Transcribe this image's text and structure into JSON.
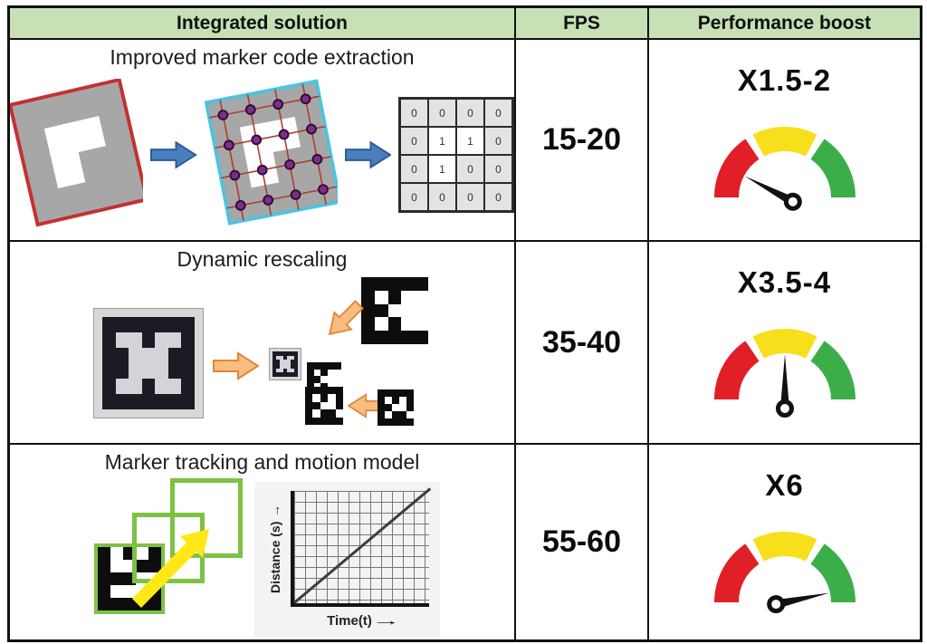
{
  "table": {
    "header": {
      "columns": [
        "Integrated solution",
        "FPS",
        "Performance boost"
      ]
    },
    "rows": [
      {
        "title": "Improved marker code extraction",
        "fps": "15-20",
        "boost": {
          "label": "X1.5-2",
          "needle_deg": 152
        },
        "matrix": {
          "values": [
            [
              0,
              0,
              0,
              0
            ],
            [
              0,
              1,
              1,
              0
            ],
            [
              0,
              1,
              0,
              0
            ],
            [
              0,
              0,
              0,
              0
            ]
          ]
        }
      },
      {
        "title": "Dynamic rescaling",
        "fps": "35-40",
        "boost": {
          "label": "X3.5-4",
          "needle_deg": 90
        }
      },
      {
        "title": "Marker tracking and motion model",
        "fps": "55-60",
        "boost": {
          "label": "X6",
          "needle_deg": 12
        },
        "graph": {
          "ylabel": "Distance (s)",
          "xlabel": "Time(t)"
        }
      }
    ]
  },
  "gauge": {
    "segments": [
      {
        "from": 180,
        "to": 124,
        "color": "#e01f26"
      },
      {
        "from": 117,
        "to": 63,
        "color": "#f7df1b"
      },
      {
        "from": 56,
        "to": 0,
        "color": "#3cae49"
      }
    ],
    "needle_color": "#111111"
  },
  "markers": {
    "creeper": {
      "pattern": [
        "0000000",
        "0110110",
        "0011100",
        "0011100",
        "0110110",
        "0000000"
      ],
      "bg": "#1b1b25",
      "fg": "#d3d3d8"
    },
    "aruco_a": {
      "pattern": [
        "00000",
        "01011",
        "00111",
        "01011",
        "00000"
      ],
      "bg": "#0d0d0d",
      "fg": "#ffffff"
    },
    "aruco_b": {
      "pattern": [
        "00000",
        "01010",
        "00110",
        "01001",
        "00000"
      ],
      "bg": "#0d0d0d",
      "fg": "#ffffff"
    },
    "aruco_track": {
      "pattern": [
        "01010",
        "01100",
        "00011",
        "01110",
        "00000"
      ],
      "bg": "#0d0d0d",
      "fg": "#ffffff"
    }
  },
  "glyphs": {
    "up_arrow": "→",
    "right_arrow": "→"
  },
  "colors": {
    "header_bg": "#c7e0b6",
    "border": "#111111",
    "title_text": "#1c1c1c",
    "blue_arrow": "#4a7ebc",
    "blue_arrow_edge": "#2d5a99",
    "orange_arrow": "#f9bd80",
    "orange_arrow_edge": "#e0873a",
    "yellow_arrow": "#ffe815",
    "quad_fill": "#a7a7a7",
    "quad1_stroke": "#c53030",
    "quad2_stroke": "#4fc3dd",
    "grid_line": "#b03a2e",
    "dot_fill": "#7b2f87",
    "dot_edge": "#2e0d38",
    "matrix_cell": "#e3e3e3",
    "matrix_border": "#2b2b2b",
    "marker_frame": "#d8d8d8",
    "green_box": "#7dc243",
    "graph_bg": "#f3f3f2",
    "graph_grid": "#777777",
    "graph_axis": "#141414",
    "graph_line": "#3d3d3d"
  }
}
